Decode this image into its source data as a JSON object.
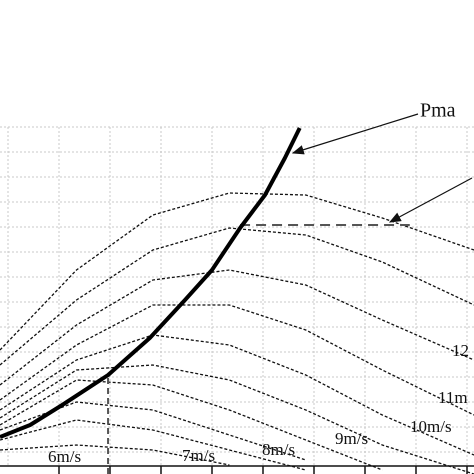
{
  "chart_data": {
    "type": "line",
    "xlim": [
      0,
      9.3
    ],
    "ylim": [
      0,
      18.96
    ],
    "grid": true,
    "x": [
      0,
      1.5,
      3,
      4.5,
      6,
      7.5,
      9.3
    ],
    "series": [
      {
        "color": "#111111",
        "values": [
          4.96,
          8.16,
          10.36,
          11.24,
          11.16,
          10.24,
          8.96
        ]
      },
      {
        "color": "#111111",
        "values": [
          4.36,
          6.96,
          8.96,
          9.84,
          9.56,
          8.48,
          6.76
        ]
      },
      {
        "color": "#111111",
        "values": [
          3.56,
          5.96,
          7.76,
          8.16,
          7.56,
          6.16,
          4.56
        ]
      },
      {
        "color": "#111111",
        "values": [
          2.96,
          5.16,
          6.76,
          6.76,
          5.76,
          4.16,
          2.36
        ]
      },
      {
        "color": "#111111",
        "values": [
          2.56,
          4.56,
          5.56,
          5.16,
          3.96,
          2.36,
          0.76
        ]
      },
      {
        "color": "#111111",
        "values": [
          2.24,
          4.16,
          4.36,
          3.76,
          2.56,
          1.16,
          0
        ]
      },
      {
        "color": "#111111",
        "values": [
          1.96,
          3.76,
          3.56,
          2.56,
          1.36,
          0.16,
          null
        ]
      },
      {
        "color": "#111111",
        "values": [
          1.76,
          2.88,
          2.56,
          1.56,
          0.56,
          null,
          null
        ]
      },
      {
        "color": "#111111",
        "values": [
          1.36,
          2.16,
          1.76,
          0.96,
          0.16,
          null,
          null
        ]
      },
      {
        "color": "#111111",
        "values": [
          0.96,
          1.16,
          0.96,
          0.36,
          null,
          null,
          null
        ]
      }
    ],
    "pmax": {
      "color": "#000000",
      "x": [
        0,
        0.59,
        1.22,
        2.12,
        2.94,
        3.63,
        4.16,
        4.71,
        5.2,
        5.59,
        5.88
      ],
      "values": [
        1.48,
        1.96,
        2.76,
        3.96,
        5.44,
        6.96,
        8.16,
        9.84,
        11.16,
        12.64,
        13.84
      ]
    },
    "reference_lines": {
      "color": "#555555",
      "h_y": 9.96,
      "h_x": [
        4.71,
        8.04
      ],
      "v_x": 2.12,
      "v_y": [
        0,
        3.96
      ]
    },
    "annotations": [
      "Pma",
      "6m/s",
      "7m/s",
      "8m/s",
      "9m/s",
      "10m/s",
      "11m",
      "12"
    ]
  }
}
